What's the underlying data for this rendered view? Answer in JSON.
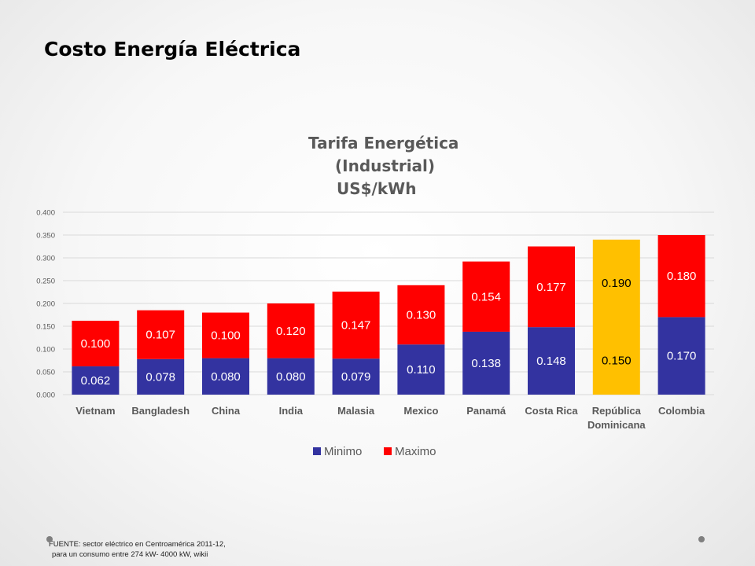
{
  "slide": {
    "title": "Costo Energía Eléctrica",
    "source_line1": "FUENTE: sector eléctrico en Centroamérica 2011-12,",
    "source_line2": "para un consumo entre 274 kW- 4000 kW, wikii"
  },
  "chart_data": {
    "type": "bar",
    "stacked": true,
    "title_lines": [
      "Tarifa Energética",
      "(Industrial)",
      "US$/kWh"
    ],
    "categories": [
      "Vietnam",
      "Bangladesh",
      "China",
      "India",
      "Malasia",
      "Mexico",
      "Panamá",
      "Costa Rica",
      "República Dominicana",
      "Colombia"
    ],
    "category_label_lines": [
      [
        "Vietnam"
      ],
      [
        "Bangladesh"
      ],
      [
        "China"
      ],
      [
        "India"
      ],
      [
        "Malasia"
      ],
      [
        "Mexico"
      ],
      [
        "Panamá"
      ],
      [
        "Costa Rica"
      ],
      [
        "República",
        "Dominicana"
      ],
      [
        "Colombia"
      ]
    ],
    "series": [
      {
        "name": "Minimo",
        "color": "#3333a0",
        "values": [
          0.062,
          0.078,
          0.08,
          0.08,
          0.079,
          0.11,
          0.138,
          0.148,
          0.15,
          0.17
        ]
      },
      {
        "name": "Maximo",
        "color": "#ff0000",
        "values": [
          0.1,
          0.107,
          0.1,
          0.12,
          0.147,
          0.13,
          0.154,
          0.177,
          0.19,
          0.18
        ]
      }
    ],
    "value_labels": [
      [
        "0.062",
        "0.078",
        "0.080",
        "0.080",
        "0.079",
        "0.110",
        "0.138",
        "0.148",
        "0.150",
        "0.170"
      ],
      [
        "0.100",
        "0.107",
        "0.100",
        "0.120",
        "0.147",
        "0.130",
        "0.154",
        "0.177",
        "0.190",
        "0.180"
      ]
    ],
    "highlight": {
      "category": "República Dominicana",
      "color": "#ffc000"
    },
    "ylim": [
      0,
      0.4
    ],
    "yticks": [
      "0.000",
      "0.050",
      "0.100",
      "0.150",
      "0.200",
      "0.250",
      "0.300",
      "0.350",
      "0.400"
    ],
    "grid": true,
    "legend_position": "bottom",
    "colors": {
      "axis_text": "#595959",
      "grid": "#d9d9d9",
      "label_text": "#ffffff",
      "highlight_label_text": "#000000"
    }
  }
}
